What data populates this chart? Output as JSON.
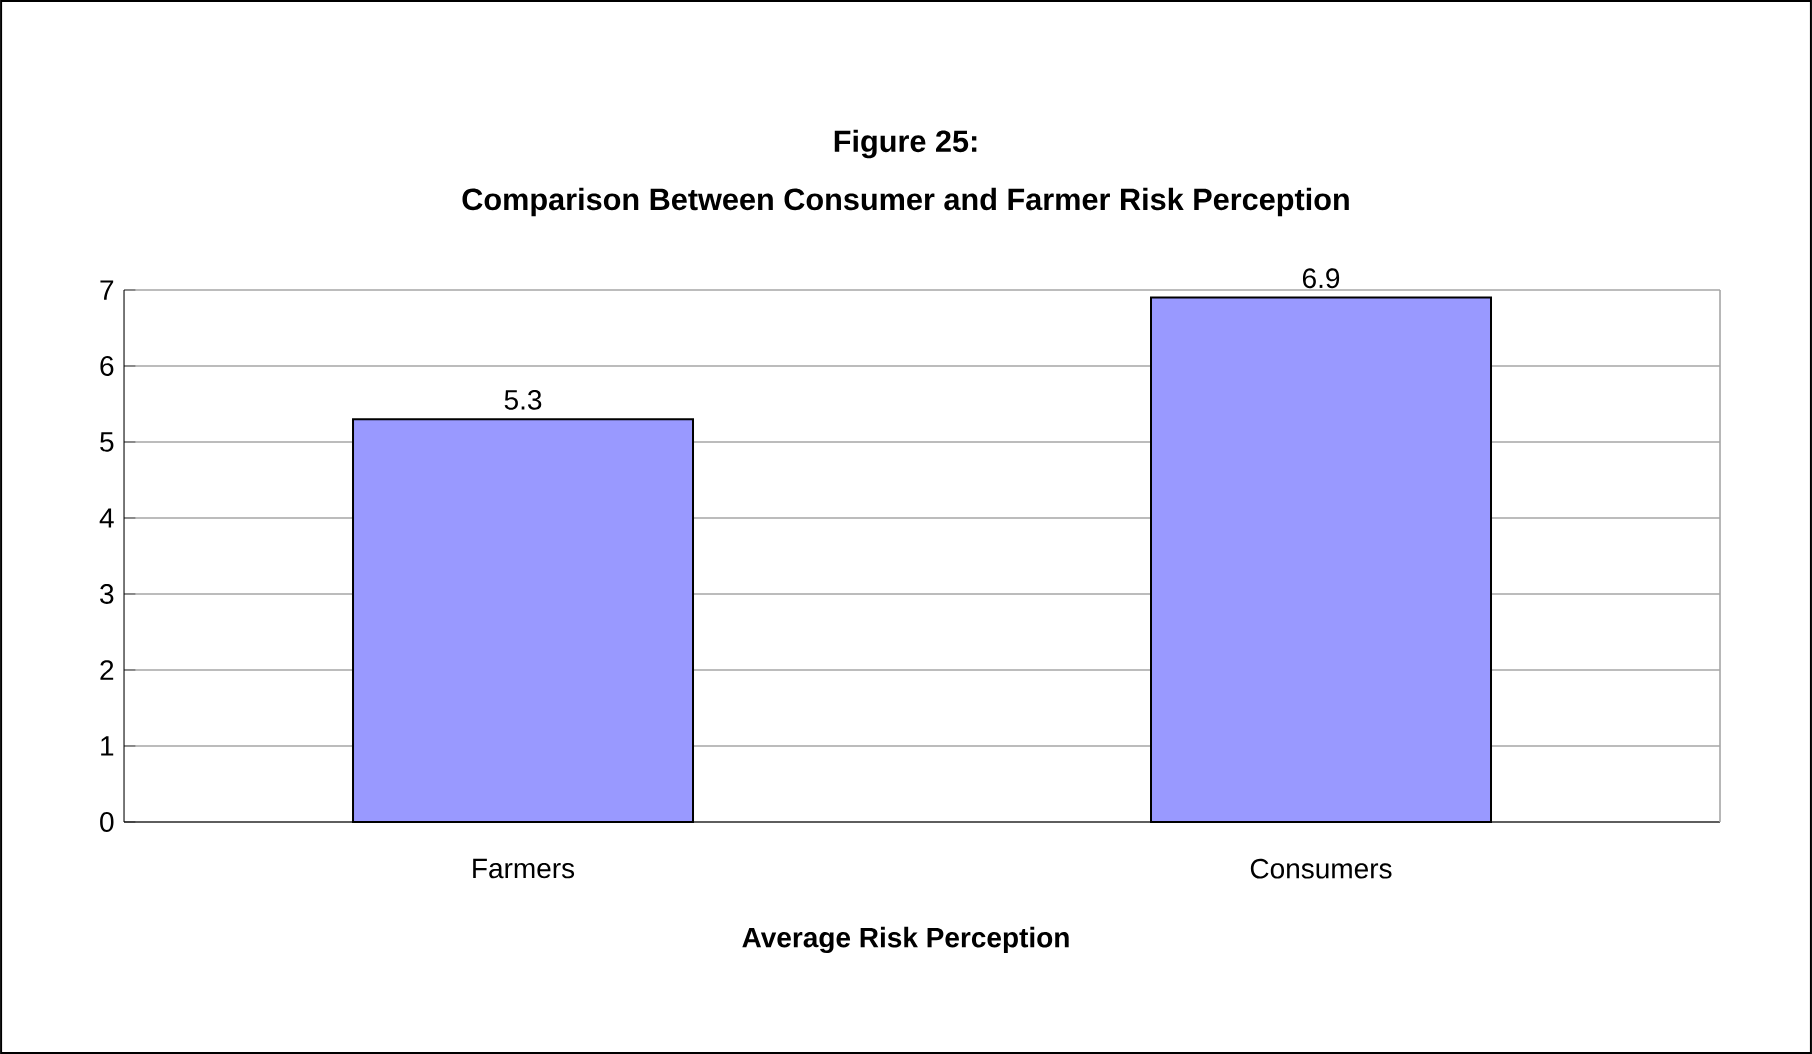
{
  "chart_data": {
    "type": "bar",
    "title": "Figure 25:",
    "subtitle": "Comparison Between Consumer and Farmer Risk Perception",
    "xlabel": "Average Risk Perception",
    "categories": [
      "Farmers",
      "Consumers"
    ],
    "values": [
      5.3,
      6.9
    ],
    "color": "#9999ff",
    "ylim": [
      0,
      7
    ],
    "yticks": [
      0,
      1,
      2,
      3,
      4,
      5,
      6,
      7
    ],
    "grid": "y",
    "data_labels": true
  }
}
